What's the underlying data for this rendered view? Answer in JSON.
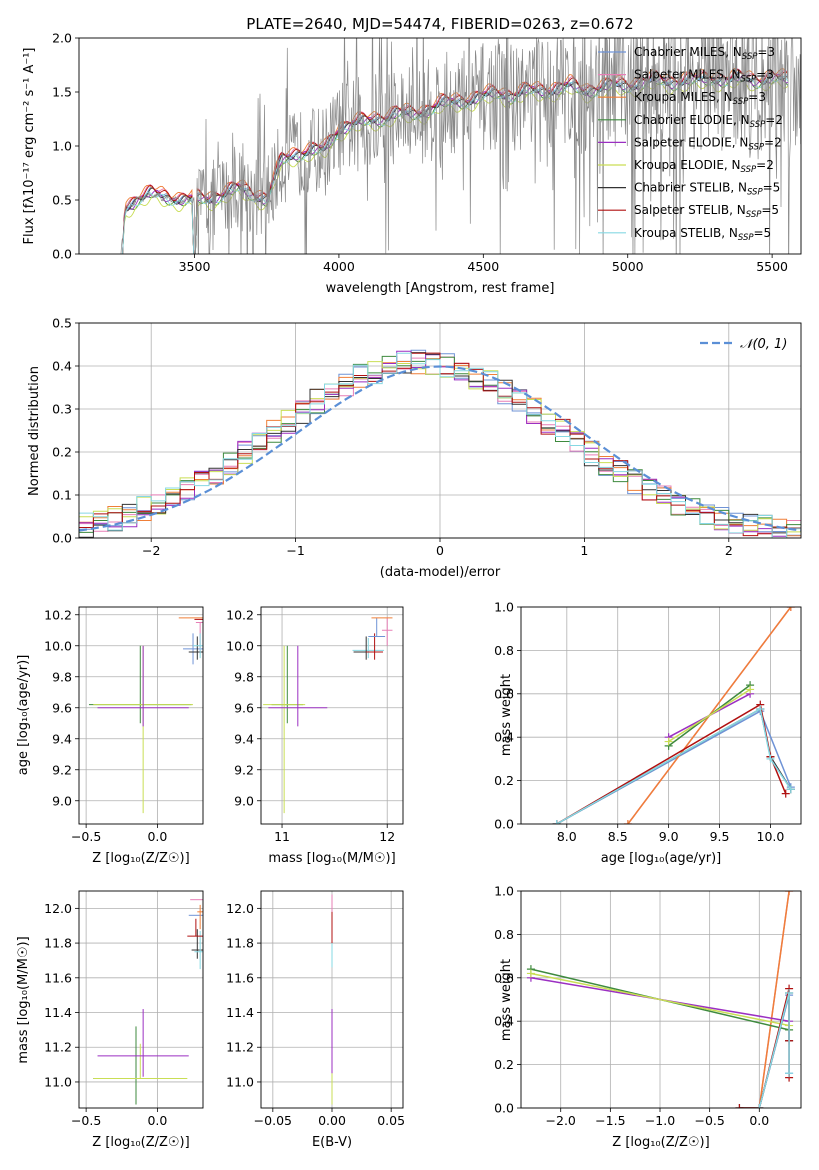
{
  "figure": {
    "title": "PLATE=2640, MJD=54474, FIBERID=0263, z=0.672"
  },
  "colors": {
    "Chabrier MILES": "#6f93d6",
    "Salpeter MILES": "#e77fb6",
    "Kroupa MILES": "#ef7f38",
    "Chabrier ELODIE": "#3e8a3e",
    "Salpeter ELODIE": "#9b2fc2",
    "Kroupa ELODIE": "#c9de55",
    "Chabrier STELIB": "#333333",
    "Salpeter STELIB": "#b01010",
    "Kroupa STELIB": "#86d8e3",
    "data": "#888888",
    "normal": "#5b8fd6"
  },
  "chart_data": [
    {
      "id": "spectrum",
      "type": "line",
      "title": "PLATE=2640, MJD=54474, FIBERID=0263, z=0.672",
      "xlabel": "wavelength [Angstrom, rest frame]",
      "ylabel": "Flux [f$_\\lambda$ 10$^{-17}$ erg cm$^{-2}$ s$^{-1}$ A$^{-1}$]",
      "xlim": [
        3100,
        5600
      ],
      "ylim": [
        0,
        2.0
      ],
      "xticks": [
        3500,
        4000,
        4500,
        5000,
        5500
      ],
      "yticks": [
        0.0,
        0.5,
        1.0,
        1.5,
        2.0
      ],
      "legend": "right",
      "legend_entries": [
        {
          "label": "Chabrier MILES, N",
          "sub": "SSP",
          "tail": "=3",
          "key": "Chabrier MILES"
        },
        {
          "label": "Salpeter MILES, N",
          "sub": "SSP",
          "tail": "=3",
          "key": "Salpeter MILES"
        },
        {
          "label": "Kroupa MILES, N",
          "sub": "SSP",
          "tail": "=3",
          "key": "Kroupa MILES"
        },
        {
          "label": "Chabrier ELODIE, N",
          "sub": "SSP",
          "tail": "=2",
          "key": "Chabrier ELODIE"
        },
        {
          "label": "Salpeter ELODIE, N",
          "sub": "SSP",
          "tail": "=2",
          "key": "Salpeter ELODIE"
        },
        {
          "label": "Kroupa ELODIE, N",
          "sub": "SSP",
          "tail": "=2",
          "key": "Kroupa ELODIE"
        },
        {
          "label": "Chabrier STELIB, N",
          "sub": "SSP",
          "tail": "=5",
          "key": "Chabrier STELIB"
        },
        {
          "label": "Salpeter STELIB, N",
          "sub": "SSP",
          "tail": "=5",
          "key": "Salpeter STELIB"
        },
        {
          "label": "Kroupa STELIB, N",
          "sub": "SSP",
          "tail": "=5",
          "key": "Kroupa STELIB"
        }
      ],
      "continuum": {
        "x": [
          3245,
          3260,
          3300,
          3350,
          3400,
          3450,
          3500,
          3550,
          3600,
          3650,
          3700,
          3750,
          3800,
          3850,
          3900,
          3950,
          4000,
          4050,
          4100,
          4150,
          4200,
          4250,
          4300,
          4350,
          4400,
          4450,
          4500,
          4550,
          4600,
          4650,
          4700,
          4750,
          4800,
          4850,
          4900,
          4950,
          5000,
          5050,
          5100,
          5150,
          5200,
          5250,
          5300,
          5350,
          5400,
          5450,
          5500,
          5550
        ],
        "y": [
          0.0,
          0.42,
          0.5,
          0.55,
          0.52,
          0.5,
          0.5,
          0.5,
          0.55,
          0.6,
          0.55,
          0.5,
          0.85,
          0.92,
          0.95,
          0.95,
          1.15,
          1.2,
          1.22,
          1.25,
          1.3,
          1.28,
          1.32,
          1.38,
          1.4,
          1.42,
          1.45,
          1.48,
          1.46,
          1.5,
          1.5,
          1.52,
          1.55,
          1.5,
          1.53,
          1.55,
          1.55,
          1.58,
          1.6,
          1.58,
          1.6,
          1.6,
          1.62,
          1.6,
          1.62,
          1.6,
          1.62,
          1.6
        ]
      },
      "data_noise_start": 3500
    },
    {
      "id": "residuals",
      "type": "histogram",
      "xlabel": "(data-model)/error",
      "ylabel": "Normed distribution",
      "xlim": [
        -2.5,
        2.5
      ],
      "ylim": [
        0,
        0.5
      ],
      "xticks": [
        -2,
        -1,
        0,
        1,
        2
      ],
      "yticks": [
        0.0,
        0.1,
        0.2,
        0.3,
        0.4,
        0.5
      ],
      "legend": "top-right",
      "legend_label": "𝒩(0, 1)",
      "bin_width": 0.1,
      "x_start": -2.5
    },
    {
      "id": "age-vs-Z",
      "type": "scatter",
      "xlabel": "Z [log₁₀(Z/Z☉)]",
      "ylabel": "age [log₁₀(age/yr)]",
      "xlim": [
        -0.55,
        0.32
      ],
      "ylim": [
        8.85,
        10.25
      ],
      "xticks": [
        -0.5,
        0.0
      ],
      "yticks": [
        9.0,
        9.2,
        9.4,
        9.6,
        9.8,
        10.0,
        10.2
      ]
    },
    {
      "id": "age-vs-mass",
      "type": "scatter",
      "xlabel": "mass [log₁₀(M/M☉)]",
      "ylabel": "",
      "xlim": [
        10.8,
        12.15
      ],
      "ylim": [
        8.85,
        10.25
      ],
      "xticks": [
        11,
        12
      ],
      "yticks": [
        9.0,
        9.2,
        9.4,
        9.6,
        9.8,
        10.0,
        10.2
      ]
    },
    {
      "id": "mass-weight-vs-age",
      "type": "line",
      "xlabel": "age [log₁₀(age/yr)]",
      "ylabel": "mass weight",
      "xlim": [
        7.55,
        10.3
      ],
      "ylim": [
        0,
        1.0
      ],
      "xticks": [
        8.0,
        8.5,
        9.0,
        9.5,
        10.0
      ],
      "yticks": [
        0.0,
        0.2,
        0.4,
        0.6,
        0.8,
        1.0
      ],
      "series": [
        {
          "key": "Chabrier MILES",
          "x": [
            7.9,
            9.9,
            10.2
          ],
          "y": [
            0.0,
            0.52,
            0.17
          ]
        },
        {
          "key": "Salpeter MILES",
          "x": [
            8.6,
            10.2
          ],
          "y": [
            0.0,
            1.0
          ]
        },
        {
          "key": "Kroupa MILES",
          "x": [
            8.6,
            10.2
          ],
          "y": [
            0.0,
            1.0
          ]
        },
        {
          "key": "Chabrier ELODIE",
          "x": [
            9.0,
            9.8
          ],
          "y": [
            0.36,
            0.64
          ]
        },
        {
          "key": "Salpeter ELODIE",
          "x": [
            9.0,
            9.8
          ],
          "y": [
            0.4,
            0.6
          ]
        },
        {
          "key": "Kroupa ELODIE",
          "x": [
            9.0,
            9.8
          ],
          "y": [
            0.38,
            0.62
          ]
        },
        {
          "key": "Chabrier STELIB",
          "x": [
            7.9,
            9.9,
            10.0,
            10.2
          ],
          "y": [
            0.0,
            0.53,
            0.31,
            0.16
          ]
        },
        {
          "key": "Salpeter STELIB",
          "x": [
            7.9,
            9.9,
            10.0,
            10.15
          ],
          "y": [
            0.0,
            0.55,
            0.31,
            0.14
          ]
        },
        {
          "key": "Kroupa STELIB",
          "x": [
            7.9,
            9.9,
            10.0,
            10.2
          ],
          "y": [
            0.0,
            0.53,
            0.3,
            0.16
          ]
        }
      ]
    },
    {
      "id": "mass-vs-Z",
      "type": "scatter",
      "xlabel": "Z [log₁₀(Z/Z☉)]",
      "ylabel": "mass [log₁₀(M/M☉)]",
      "xlim": [
        -0.55,
        0.32
      ],
      "ylim": [
        10.85,
        12.1
      ],
      "xticks": [
        -0.5,
        0.0
      ],
      "yticks": [
        11.0,
        11.2,
        11.4,
        11.6,
        11.8,
        12.0
      ]
    },
    {
      "id": "mass-vs-EBV",
      "type": "scatter",
      "xlabel": "E(B-V)",
      "ylabel": "",
      "xlim": [
        -0.06,
        0.06
      ],
      "ylim": [
        10.85,
        12.1
      ],
      "xticks": [
        -0.05,
        0.0,
        0.05
      ],
      "xticklabels": [
        "−0.05",
        "0.00",
        "0.05"
      ],
      "yticks": [
        11.0,
        11.2,
        11.4,
        11.6,
        11.8,
        12.0
      ]
    },
    {
      "id": "mass-weight-vs-Z",
      "type": "line",
      "xlabel": "Z [log₁₀(Z/Z☉)]",
      "ylabel": "mass weight",
      "xlim": [
        -2.4,
        0.42
      ],
      "ylim": [
        0,
        1.0
      ],
      "xticks": [
        -2.0,
        -1.5,
        -1.0,
        -0.5,
        0.0
      ],
      "yticks": [
        0.0,
        0.2,
        0.4,
        0.6,
        0.8,
        1.0
      ],
      "series": [
        {
          "key": "Chabrier MILES",
          "x": [
            0.0,
            0.3,
            0.3
          ],
          "y": [
            0.0,
            0.52,
            0.16
          ]
        },
        {
          "key": "Salpeter MILES",
          "x": [
            0.0,
            0.3
          ],
          "y": [
            0.0,
            1.0
          ]
        },
        {
          "key": "Kroupa MILES",
          "x": [
            0.0,
            0.3
          ],
          "y": [
            0.0,
            1.0
          ]
        },
        {
          "key": "Chabrier ELODIE",
          "x": [
            -2.3,
            0.3
          ],
          "y": [
            0.64,
            0.36
          ]
        },
        {
          "key": "Salpeter ELODIE",
          "x": [
            -2.3,
            0.3
          ],
          "y": [
            0.6,
            0.4
          ]
        },
        {
          "key": "Kroupa ELODIE",
          "x": [
            -2.3,
            0.3
          ],
          "y": [
            0.62,
            0.38
          ]
        },
        {
          "key": "Chabrier STELIB",
          "x": [
            -0.2,
            0.0,
            0.3,
            0.3
          ],
          "y": [
            0.0,
            0.0,
            0.53,
            0.31
          ]
        },
        {
          "key": "Salpeter STELIB",
          "x": [
            -0.2,
            0.0,
            0.3,
            0.3,
            0.3
          ],
          "y": [
            0.0,
            0.0,
            0.55,
            0.31,
            0.14
          ]
        },
        {
          "key": "Kroupa STELIB",
          "x": [
            0.0,
            0.3,
            0.3
          ],
          "y": [
            0.0,
            0.53,
            0.16
          ]
        }
      ]
    }
  ]
}
